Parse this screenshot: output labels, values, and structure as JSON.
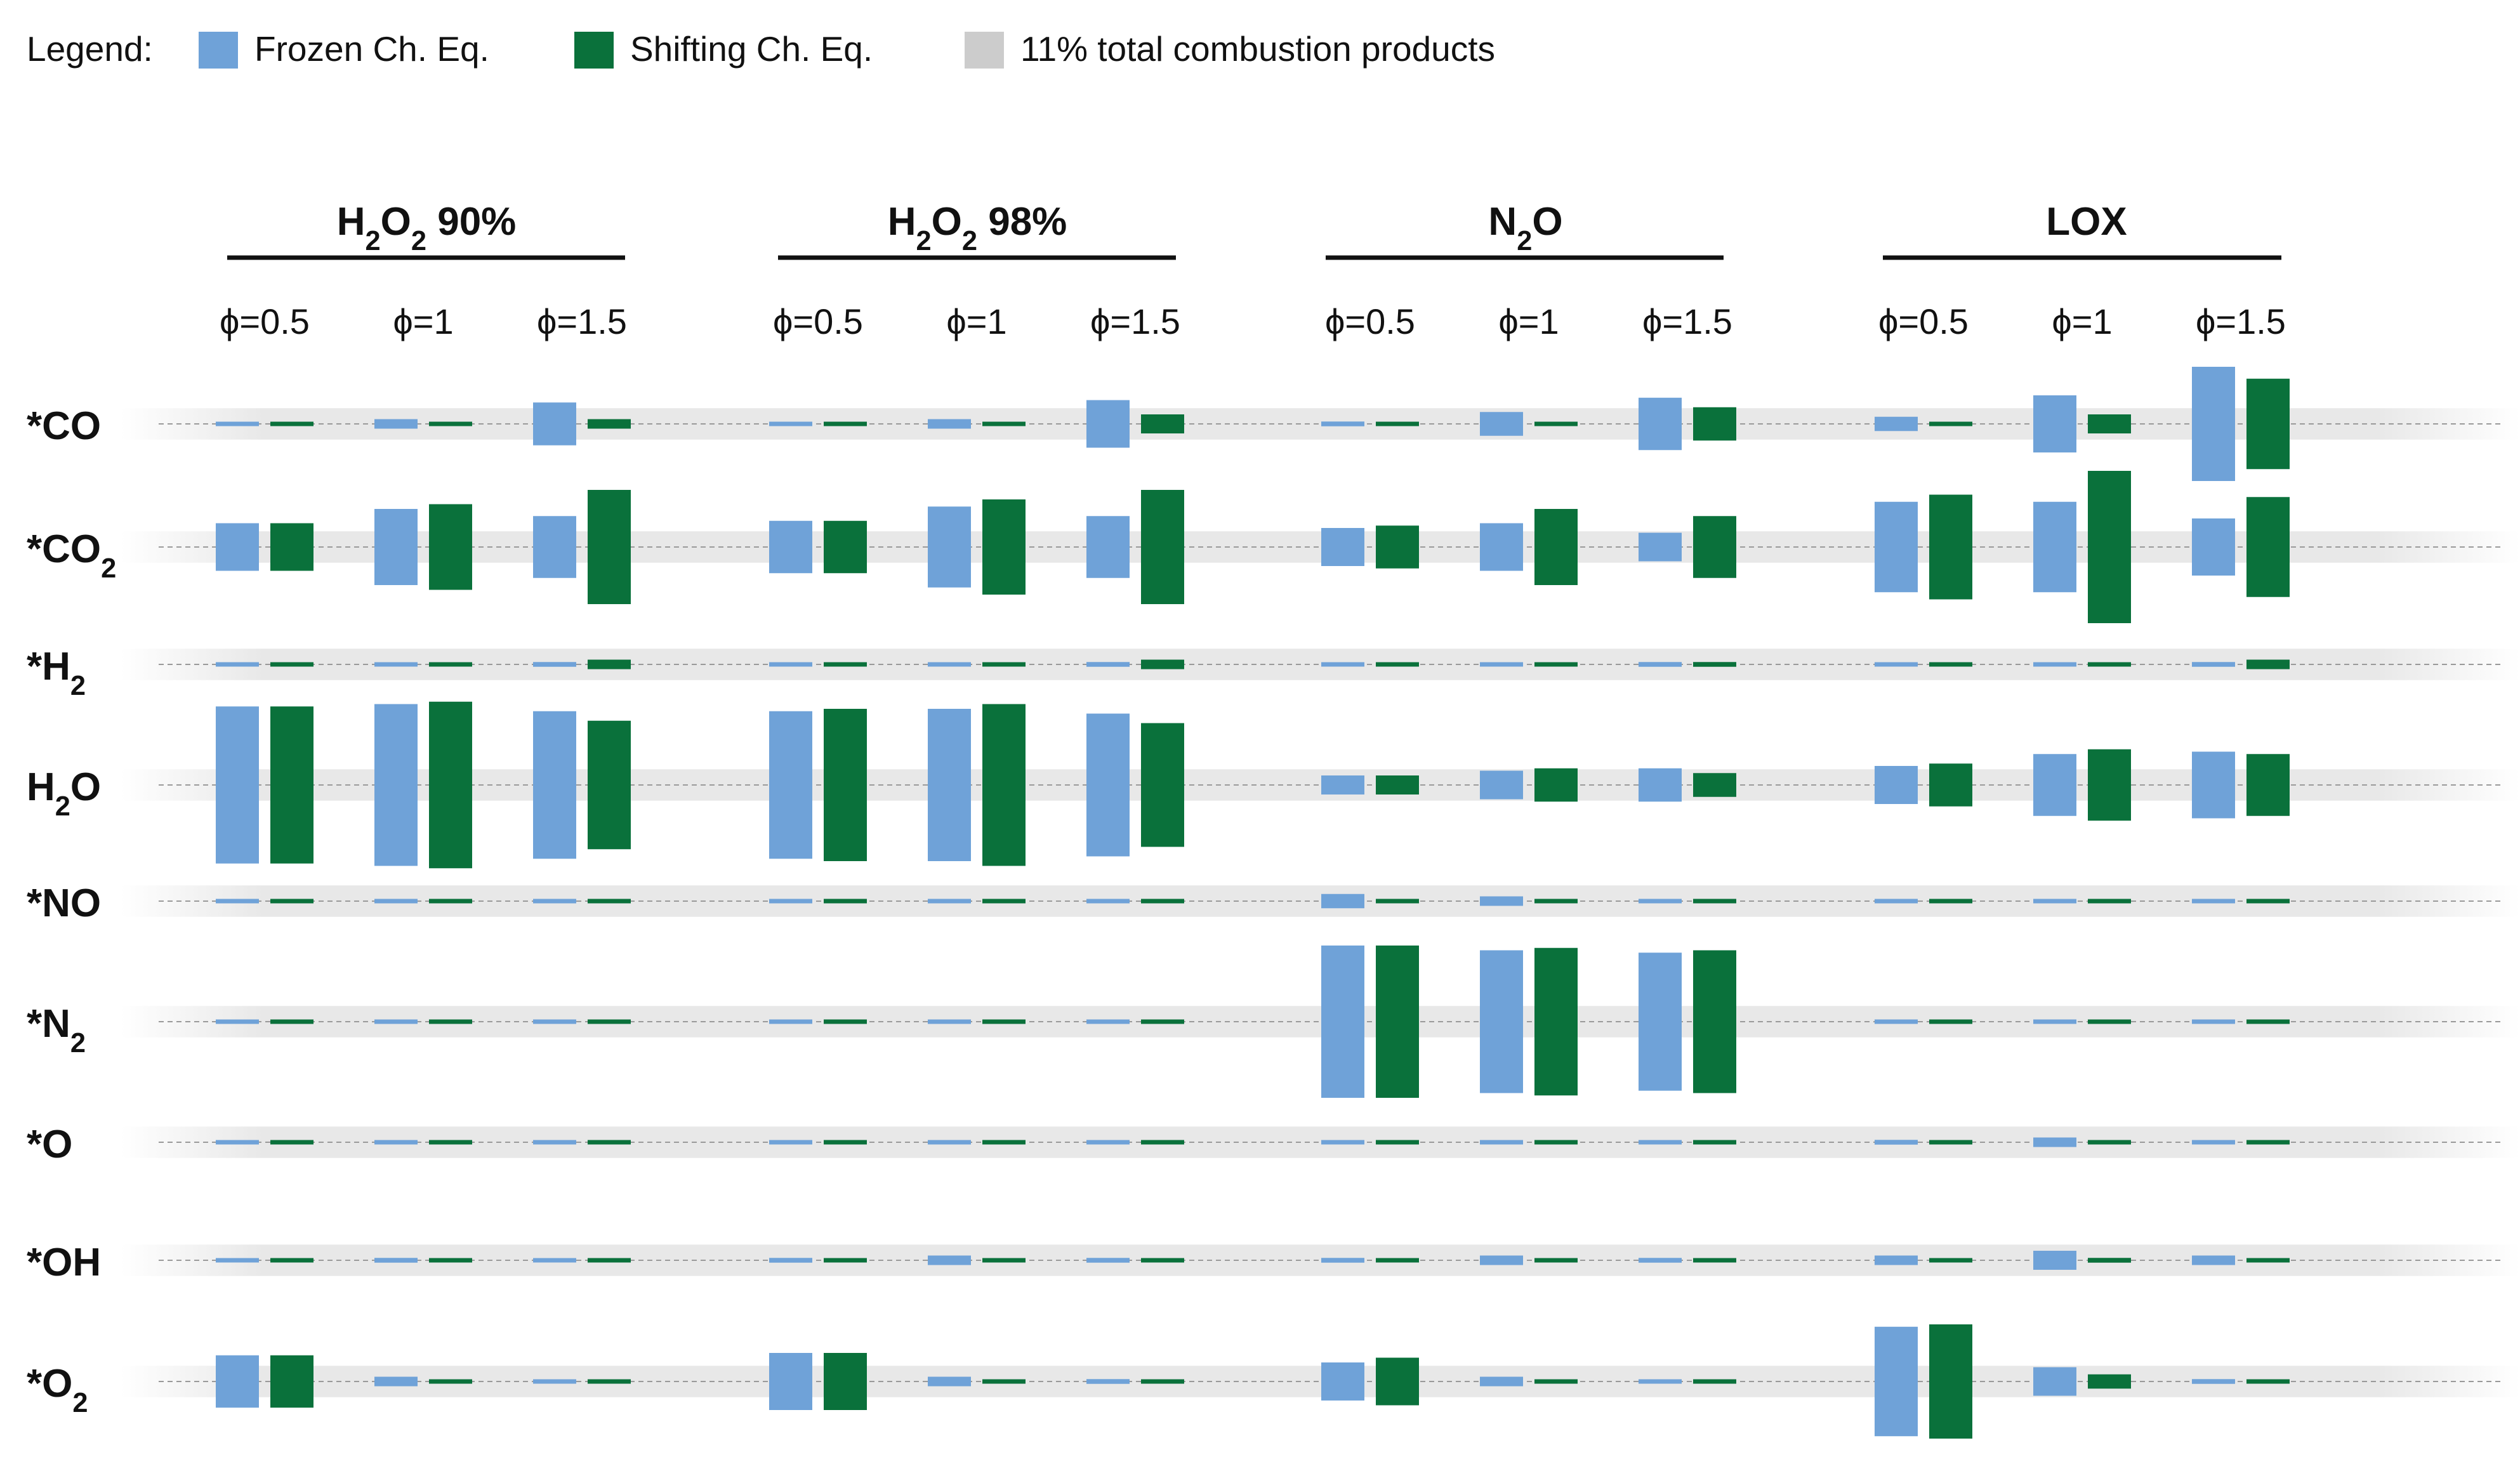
{
  "chart_data": {
    "type": "bar",
    "subtype": "diverging-symmetric-grouped",
    "legend": {
      "prefix": "Legend:",
      "entries": [
        {
          "key": "frozen",
          "label": "Frozen Ch. Eq.",
          "color": "#6fa2d8"
        },
        {
          "key": "shifting",
          "label": "Shifting Ch. Eq.",
          "color": "#0a713b"
        },
        {
          "key": "reference",
          "label": "11% total combustion products",
          "color": "#cccccc"
        }
      ]
    },
    "unit_note": "bar height proportional to mole fraction; grey band = 11% of total combustion products",
    "reference_fraction": 0.11,
    "oxidizers": [
      {
        "base": "H",
        "sub": "2",
        "mid": "O",
        "sub2": "2",
        "tail": " 90%"
      },
      {
        "base": "H",
        "sub": "2",
        "mid": "O",
        "sub2": "2",
        "tail": " 98%"
      },
      {
        "base": "N",
        "sub": "2",
        "mid": "O",
        "sub2": "",
        "tail": ""
      },
      {
        "base": "LOX",
        "sub": "",
        "mid": "",
        "sub2": "",
        "tail": ""
      }
    ],
    "phi_prefix": "ϕ=",
    "phi_values": [
      "0.5",
      "1",
      "1.5"
    ],
    "species": [
      {
        "star": "*",
        "base": "CO",
        "sub": "",
        "tail": "",
        "sizes": {
          "frozen": 0.04,
          "shifting": 0.03,
          "min": 0.05,
          "max": 0.4
        }
      },
      {
        "star": "*",
        "base": "CO",
        "sub": "2",
        "tail": ""
      },
      {
        "star": "*",
        "base": "H",
        "sub": "2",
        "tail": ""
      },
      {
        "star": "",
        "base": "H",
        "sub": "2",
        "tail": "O"
      },
      {
        "star": "*",
        "base": "NO",
        "sub": "",
        "tail": ""
      },
      {
        "star": "*",
        "base": "N",
        "sub": "2",
        "tail": ""
      },
      {
        "star": "*",
        "base": "O",
        "sub": "",
        "tail": ""
      },
      {
        "star": "*",
        "base": "OH",
        "sub": "",
        "tail": ""
      },
      {
        "star": "*",
        "base": "O",
        "sub": "2",
        "tail": ""
      }
    ],
    "frozen": [
      [
        [
          0.0,
          0.02,
          0.09
        ],
        [
          0.0,
          0.02,
          0.1
        ],
        [
          0.01,
          0.05,
          0.11
        ],
        [
          0.03,
          0.12,
          0.24
        ]
      ],
      [
        [
          0.1,
          0.16,
          0.13
        ],
        [
          0.11,
          0.17,
          0.13
        ],
        [
          0.08,
          0.1,
          0.06
        ],
        [
          0.19,
          0.19,
          0.12
        ]
      ],
      [
        [
          0.0,
          0.0,
          0.01
        ],
        [
          0.0,
          0.0,
          0.01
        ],
        [
          0.0,
          0.0,
          0.01
        ],
        [
          0.0,
          0.0,
          0.01
        ]
      ],
      [
        [
          0.33,
          0.34,
          0.31
        ],
        [
          0.31,
          0.32,
          0.3
        ],
        [
          0.04,
          0.06,
          0.07
        ],
        [
          0.08,
          0.13,
          0.14
        ]
      ],
      [
        [
          0.0,
          0.0,
          0.0
        ],
        [
          0.0,
          0.0,
          0.0
        ],
        [
          0.03,
          0.02,
          0.0
        ],
        [
          0.0,
          0.0,
          0.0
        ]
      ],
      [
        [
          0.0,
          0.0,
          0.0
        ],
        [
          0.0,
          0.0,
          0.0
        ],
        [
          0.32,
          0.3,
          0.29
        ],
        [
          0.0,
          0.0,
          0.0
        ]
      ],
      [
        [
          0.0,
          0.0,
          0.0
        ],
        [
          0.0,
          0.0,
          0.0
        ],
        [
          0.0,
          0.0,
          0.0
        ],
        [
          0.01,
          0.02,
          0.0
        ]
      ],
      [
        [
          0.0,
          0.01,
          0.0
        ],
        [
          0.01,
          0.02,
          0.01
        ],
        [
          0.01,
          0.02,
          0.01
        ],
        [
          0.02,
          0.04,
          0.02
        ]
      ],
      [
        [
          0.11,
          0.02,
          0.0
        ],
        [
          0.12,
          0.02,
          0.01
        ],
        [
          0.08,
          0.02,
          0.0
        ],
        [
          0.23,
          0.06,
          0.01
        ]
      ]
    ],
    "shifting": [
      [
        [
          0.0,
          0.0,
          0.02
        ],
        [
          0.0,
          0.0,
          0.04
        ],
        [
          0.0,
          0.0,
          0.07
        ],
        [
          0.0,
          0.04,
          0.19
        ]
      ],
      [
        [
          0.1,
          0.18,
          0.24
        ],
        [
          0.11,
          0.2,
          0.24
        ],
        [
          0.09,
          0.16,
          0.13
        ],
        [
          0.22,
          0.32,
          0.21
        ]
      ],
      [
        [
          0.0,
          0.0,
          0.02
        ],
        [
          0.0,
          0.0,
          0.02
        ],
        [
          0.0,
          0.0,
          0.01
        ],
        [
          0.0,
          0.0,
          0.02
        ]
      ],
      [
        [
          0.33,
          0.35,
          0.27
        ],
        [
          0.32,
          0.34,
          0.26
        ],
        [
          0.04,
          0.07,
          0.05
        ],
        [
          0.09,
          0.15,
          0.13
        ]
      ],
      [
        [
          0.0,
          0.0,
          0.0
        ],
        [
          0.0,
          0.0,
          0.0
        ],
        [
          0.0,
          0.0,
          0.0
        ],
        [
          0.0,
          0.0,
          0.0
        ]
      ],
      [
        [
          0.0,
          0.0,
          0.0
        ],
        [
          0.0,
          0.0,
          0.0
        ],
        [
          0.32,
          0.31,
          0.3
        ],
        [
          0.0,
          0.0,
          0.0
        ]
      ],
      [
        [
          0.0,
          0.0,
          0.0
        ],
        [
          0.0,
          0.0,
          0.0
        ],
        [
          0.0,
          0.0,
          0.0
        ],
        [
          0.0,
          0.0,
          0.0
        ]
      ],
      [
        [
          0.0,
          0.0,
          0.0
        ],
        [
          0.0,
          0.0,
          0.0
        ],
        [
          0.0,
          0.0,
          0.0
        ],
        [
          0.0,
          0.01,
          0.0
        ]
      ],
      [
        [
          0.11,
          0.0,
          0.0
        ],
        [
          0.12,
          0.0,
          0.0
        ],
        [
          0.1,
          0.0,
          0.0
        ],
        [
          0.24,
          0.03,
          0.0
        ]
      ]
    ]
  }
}
